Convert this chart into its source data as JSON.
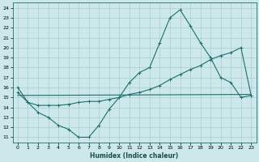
{
  "xlabel": "Humidex (Indice chaleur)",
  "bg_color": "#cce8ea",
  "grid_color": "#aacccc",
  "line_color": "#1e6e6e",
  "xlim": [
    -0.5,
    23.5
  ],
  "ylim": [
    10.5,
    24.5
  ],
  "yticks": [
    11,
    12,
    13,
    14,
    15,
    16,
    17,
    18,
    19,
    20,
    21,
    22,
    23,
    24
  ],
  "xticks": [
    0,
    1,
    2,
    3,
    4,
    5,
    6,
    7,
    8,
    9,
    10,
    11,
    12,
    13,
    14,
    15,
    16,
    17,
    18,
    19,
    20,
    21,
    22,
    23
  ],
  "line1_x": [
    0,
    1,
    2,
    3,
    4,
    5,
    6,
    7,
    8,
    9,
    10,
    11,
    12,
    13,
    14,
    15,
    16,
    17,
    18,
    19,
    20,
    21,
    22,
    23
  ],
  "line1_y": [
    16.0,
    14.5,
    13.5,
    13.0,
    12.2,
    11.8,
    11.0,
    11.0,
    12.2,
    13.8,
    15.0,
    16.5,
    17.5,
    18.0,
    20.5,
    23.0,
    23.8,
    22.2,
    20.5,
    19.0,
    17.0,
    16.5,
    15.0,
    15.2
  ],
  "line2_x": [
    0,
    1,
    2,
    3,
    4,
    5,
    6,
    7,
    8,
    9,
    10,
    11,
    12,
    13,
    14,
    15,
    16,
    17,
    18,
    19,
    20,
    21,
    22,
    23
  ],
  "line2_y": [
    15.5,
    14.5,
    14.2,
    14.2,
    14.2,
    14.3,
    14.5,
    14.6,
    14.6,
    14.8,
    15.0,
    15.3,
    15.5,
    15.8,
    16.2,
    16.8,
    17.3,
    17.8,
    18.2,
    18.8,
    19.2,
    19.5,
    20.0,
    15.2
  ],
  "line3_x": [
    0,
    23
  ],
  "line3_y": [
    15.2,
    15.3
  ],
  "figsize": [
    3.2,
    2.0
  ],
  "dpi": 100
}
